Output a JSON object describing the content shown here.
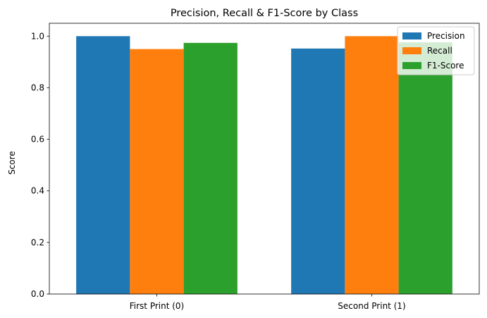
{
  "chart_data": {
    "type": "bar",
    "title": "Precision, Recall & F1-Score by Class",
    "xlabel": "",
    "ylabel": "Score",
    "categories": [
      "First Print (0)",
      "Second Print (1)"
    ],
    "series": [
      {
        "name": "Precision",
        "color": "#1f77b4",
        "values": [
          1.0,
          0.952
        ]
      },
      {
        "name": "Recall",
        "color": "#ff7f0e",
        "values": [
          0.95,
          1.0
        ]
      },
      {
        "name": "F1-Score",
        "color": "#2ca02c",
        "values": [
          0.974,
          0.976
        ]
      }
    ],
    "ylim": [
      0,
      1.05
    ],
    "yticks": [
      0.0,
      0.2,
      0.4,
      0.6,
      0.8,
      1.0
    ],
    "ytick_labels": [
      "0.0",
      "0.2",
      "0.4",
      "0.6",
      "0.8",
      "1.0"
    ],
    "grid": false,
    "legend_position": "top-right"
  }
}
